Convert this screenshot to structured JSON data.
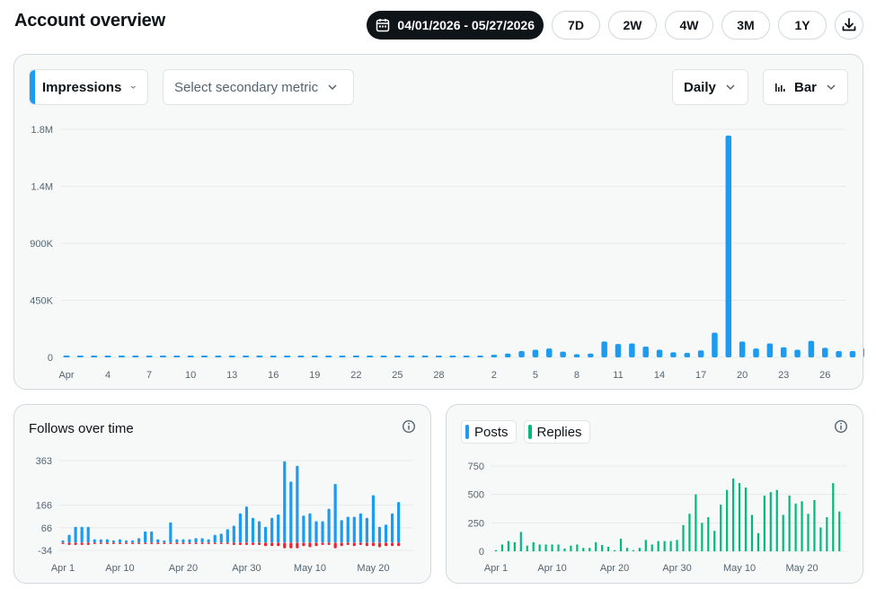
{
  "header": {
    "title": "Account overview",
    "date_range": "04/01/2026 - 05/27/2026",
    "ranges": [
      "7D",
      "2W",
      "4W",
      "3M",
      "1Y"
    ]
  },
  "colors": {
    "primary": "#1d9bf0",
    "negative": "#f4212e",
    "replies": "#00ba7c",
    "grid": "#e6eaec",
    "axis_text": "#536471"
  },
  "icons": {
    "calendar": "calendar-icon",
    "download": "download-icon",
    "info": "info-icon",
    "chevron": "chevron-down-icon",
    "bar_chart": "bar-chart-icon"
  },
  "main_chart": {
    "primary_metric": "Impressions",
    "secondary_placeholder": "Select secondary metric",
    "interval": "Daily",
    "chart_type_label": "Bar"
  },
  "follows": {
    "title": "Follows over time"
  },
  "posts": {
    "legend": [
      "Posts",
      "Replies"
    ]
  },
  "chart_data": [
    {
      "type": "bar",
      "ytick_labels": [
        "0",
        "450K",
        "900K",
        "1.4M",
        "1.8M"
      ],
      "yticks": [
        0,
        450000,
        900000,
        1350000,
        1800000
      ],
      "ylim": [
        0,
        1800000
      ],
      "x_tick_labels": [
        "Apr",
        "4",
        "7",
        "10",
        "13",
        "16",
        "19",
        "22",
        "25",
        "28",
        "2",
        "5",
        "8",
        "11",
        "14",
        "17",
        "20",
        "23",
        "26"
      ],
      "x_tick_index": [
        0,
        3,
        6,
        9,
        12,
        15,
        18,
        21,
        24,
        27,
        31,
        34,
        37,
        40,
        43,
        46,
        49,
        52,
        55
      ],
      "values": [
        3000,
        3000,
        3000,
        5000,
        4000,
        3000,
        3000,
        3000,
        3000,
        3000,
        3000,
        4000,
        3000,
        3000,
        3000,
        3000,
        3000,
        3000,
        3000,
        6000,
        4000,
        3000,
        3000,
        4000,
        4000,
        3000,
        4000,
        3000,
        3000,
        3000,
        3000,
        20000,
        30000,
        50000,
        60000,
        70000,
        45000,
        25000,
        30000,
        125000,
        105000,
        110000,
        85000,
        60000,
        40000,
        35000,
        55000,
        195000,
        1750000,
        125000,
        70000,
        110000,
        80000,
        60000,
        130000,
        75000,
        50000,
        50000,
        75000
      ]
    },
    {
      "type": "bar",
      "title": "Follows over time",
      "ytick_labels": [
        "-34",
        "66",
        "166",
        "363"
      ],
      "yticks": [
        -34,
        66,
        166,
        363
      ],
      "ylim": [
        -34,
        363
      ],
      "x_tick_labels": [
        "Apr 1",
        "Apr 10",
        "Apr 20",
        "Apr 30",
        "May 10",
        "May 20"
      ],
      "x_tick_index": [
        0,
        9,
        19,
        29,
        39,
        49
      ],
      "positive": [
        10,
        35,
        70,
        70,
        70,
        15,
        15,
        15,
        10,
        15,
        10,
        10,
        20,
        50,
        50,
        15,
        10,
        90,
        15,
        15,
        15,
        20,
        20,
        15,
        35,
        40,
        60,
        75,
        130,
        160,
        110,
        95,
        70,
        110,
        125,
        360,
        270,
        340,
        120,
        130,
        95,
        95,
        150,
        260,
        100,
        115,
        115,
        130,
        110,
        210,
        70,
        80,
        130,
        180
      ],
      "negative": [
        -5,
        -10,
        -10,
        -10,
        -10,
        -5,
        -5,
        -5,
        -5,
        -5,
        -5,
        -5,
        -5,
        -5,
        -5,
        -5,
        -5,
        -5,
        -5,
        -5,
        -5,
        -5,
        -5,
        -5,
        -5,
        -5,
        -5,
        -10,
        -10,
        -10,
        -10,
        -10,
        -15,
        -15,
        -15,
        -25,
        -25,
        -25,
        -15,
        -20,
        -15,
        -10,
        -10,
        -25,
        -15,
        -10,
        -15,
        -10,
        -15,
        -15,
        -20,
        -15,
        -15,
        -15
      ]
    },
    {
      "type": "bar",
      "series_names": [
        "Posts",
        "Replies"
      ],
      "ytick_labels": [
        "0",
        "250",
        "500",
        "750"
      ],
      "yticks": [
        0,
        250,
        500,
        750
      ],
      "ylim": [
        0,
        750
      ],
      "x_tick_labels": [
        "Apr 1",
        "Apr 10",
        "Apr 20",
        "Apr 30",
        "May 10",
        "May 20"
      ],
      "x_tick_index": [
        0,
        9,
        19,
        29,
        39,
        49
      ],
      "posts": [
        0,
        0,
        0,
        0,
        0,
        0,
        0,
        0,
        0,
        0,
        0,
        0,
        0,
        0,
        0,
        0,
        0,
        0,
        0,
        0,
        0,
        0,
        0,
        0,
        0,
        0,
        0,
        0,
        0,
        0,
        0,
        0,
        0,
        0,
        0,
        0,
        0,
        0,
        0,
        0,
        0,
        0,
        0,
        0,
        0,
        0,
        0,
        0,
        0,
        0,
        0,
        0,
        0,
        0,
        0,
        0
      ],
      "replies": [
        10,
        60,
        90,
        80,
        170,
        50,
        80,
        60,
        60,
        60,
        60,
        25,
        50,
        60,
        30,
        30,
        80,
        55,
        40,
        10,
        110,
        30,
        10,
        30,
        100,
        60,
        90,
        90,
        90,
        100,
        230,
        330,
        500,
        250,
        300,
        180,
        410,
        540,
        640,
        600,
        560,
        320,
        160,
        490,
        520,
        540,
        320,
        490,
        420,
        440,
        330,
        450,
        210,
        300,
        600,
        350
      ]
    }
  ]
}
